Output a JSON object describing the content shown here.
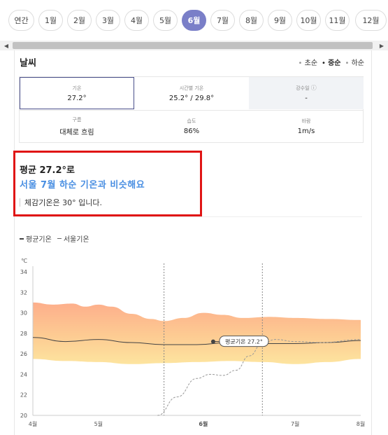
{
  "months": [
    {
      "label": "연간",
      "active": false
    },
    {
      "label": "1월",
      "active": false
    },
    {
      "label": "2월",
      "active": false
    },
    {
      "label": "3월",
      "active": false
    },
    {
      "label": "4월",
      "active": false
    },
    {
      "label": "5월",
      "active": false
    },
    {
      "label": "6월",
      "active": true
    },
    {
      "label": "7월",
      "active": false
    },
    {
      "label": "8월",
      "active": false
    },
    {
      "label": "9월",
      "active": false
    },
    {
      "label": "10월",
      "active": false
    },
    {
      "label": "11월",
      "active": false
    },
    {
      "label": "12월",
      "active": false
    }
  ],
  "scroll": {
    "left_arrow": "◀",
    "right_arrow": "▶"
  },
  "weather": {
    "title": "날씨",
    "period_options": [
      {
        "label": "초순",
        "selected": false
      },
      {
        "label": "중순",
        "selected": true
      },
      {
        "label": "하순",
        "selected": false
      }
    ],
    "cells": [
      {
        "label": "기온",
        "value": "27.2°"
      },
      {
        "label": "시간별 기온",
        "value": "25.2° / 29.8°"
      },
      {
        "label": "강수일",
        "value": "-"
      },
      {
        "label": "구름",
        "value": "대체로 흐림"
      },
      {
        "label": "습도",
        "value": "86%"
      },
      {
        "label": "바람",
        "value": "1m/s"
      }
    ],
    "info_icon": "ⓘ"
  },
  "summary": {
    "avg": "평균 27.2°로",
    "compare": "서울 7월 하순 기온과 비슷해요",
    "feels": "체감기온은 30° 입니다."
  },
  "chart_data": {
    "type": "line",
    "legend": [
      "평균기온",
      "서울기온"
    ],
    "ylabel": "℃",
    "ylim": [
      20,
      34
    ],
    "yticks": [
      34,
      32,
      30,
      28,
      26,
      24,
      22,
      20
    ],
    "xticks": [
      {
        "label": "4월",
        "x": 0
      },
      {
        "label": "5월",
        "x": 1
      },
      {
        "label": "6월",
        "x": 2.6,
        "bold": true
      },
      {
        "label": "7월",
        "x": 4
      },
      {
        "label": "8월",
        "x": 5
      }
    ],
    "x_range": [
      0,
      5
    ],
    "vlines": [
      2,
      3.5
    ],
    "band_upper": [
      [
        0,
        31.0
      ],
      [
        0.3,
        30.8
      ],
      [
        0.6,
        30.9
      ],
      [
        0.8,
        30.6
      ],
      [
        1.0,
        30.8
      ],
      [
        1.2,
        30.6
      ],
      [
        1.5,
        29.9
      ],
      [
        1.8,
        29.4
      ],
      [
        2.0,
        29.2
      ],
      [
        2.3,
        29.5
      ],
      [
        2.6,
        30.0
      ],
      [
        2.9,
        29.8
      ],
      [
        3.2,
        29.5
      ],
      [
        3.6,
        29.6
      ],
      [
        4.0,
        29.5
      ],
      [
        4.5,
        29.4
      ],
      [
        5.0,
        29.3
      ]
    ],
    "band_lower": [
      [
        0,
        25.5
      ],
      [
        0.5,
        25.3
      ],
      [
        1.0,
        25.2
      ],
      [
        1.5,
        25.0
      ],
      [
        2.0,
        25.1
      ],
      [
        2.5,
        25.2
      ],
      [
        3.0,
        25.3
      ],
      [
        3.5,
        25.2
      ],
      [
        4.0,
        25.0
      ],
      [
        4.5,
        25.2
      ],
      [
        5.0,
        25.5
      ]
    ],
    "series": [
      {
        "name": "평균기온",
        "values": [
          [
            0,
            27.6
          ],
          [
            0.5,
            27.2
          ],
          [
            1.0,
            27.4
          ],
          [
            1.5,
            27.1
          ],
          [
            2.0,
            26.9
          ],
          [
            2.5,
            26.9
          ],
          [
            3.0,
            27.1
          ],
          [
            3.5,
            27.0
          ],
          [
            4.0,
            27.0
          ],
          [
            4.5,
            27.1
          ],
          [
            5.0,
            27.3
          ]
        ]
      },
      {
        "name": "서울기온",
        "values": [
          [
            1.9,
            20.0
          ],
          [
            2.2,
            21.8
          ],
          [
            2.5,
            23.6
          ],
          [
            2.7,
            24.0
          ],
          [
            2.9,
            23.9
          ],
          [
            3.1,
            24.4
          ],
          [
            3.3,
            25.8
          ],
          [
            3.5,
            27.0
          ],
          [
            3.7,
            27.4
          ],
          [
            4.0,
            27.2
          ],
          [
            4.4,
            27.1
          ],
          [
            5.0,
            27.4
          ]
        ]
      }
    ],
    "marker": {
      "x": 2.75,
      "y": 27.2,
      "label": "평균기온 27.2°"
    }
  }
}
